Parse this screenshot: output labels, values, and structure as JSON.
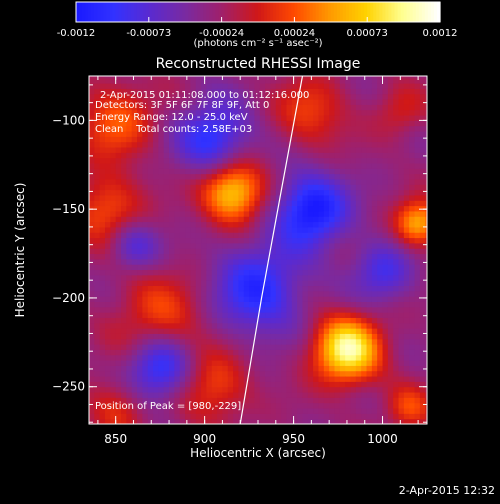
{
  "chart_data": {
    "type": "heatmap",
    "title": "Reconstructed RHESSI Image",
    "xlabel": "Heliocentric X (arcsec)",
    "ylabel": "Heliocentric Y (arcsec)",
    "xlim": [
      835,
      1025
    ],
    "ylim": [
      -271,
      -75
    ],
    "x_ticks": [
      850,
      900,
      950,
      1000
    ],
    "y_ticks": [
      -100,
      -150,
      -200,
      -250
    ],
    "colorbar": {
      "range": [
        -0.0012,
        0.0012
      ],
      "ticks": [
        "-0.0012",
        "-0.00073",
        "-0.00024",
        "0.00024",
        "0.00073",
        "0.0012"
      ],
      "unit_label": "(photons cm⁻² s⁻¹ asec⁻²)",
      "colors": [
        "#1a1aff",
        "#3232ff",
        "#5a2ad0",
        "#7a2aa0",
        "#a0206a",
        "#d01818",
        "#ff4a00",
        "#ff9a00",
        "#ffd200",
        "#ffff90",
        "#ffffff"
      ]
    },
    "annotations": [
      "2-Apr-2015 01:11:08.000 to 01:12:16.000",
      "Detectors: 3F 5F 6F 7F 8F 9F, Att 0",
      "Energy Range: 12.0 - 25.0 keV",
      "Clean    Total counts: 2.58E+03",
      "Position of Peak = [980,-229]"
    ],
    "sources": [
      {
        "x": 980,
        "y": -229,
        "amp": 1.25,
        "r": 13
      },
      {
        "x": 916,
        "y": -140,
        "amp": 1.05,
        "r": 12
      },
      {
        "x": 1020,
        "y": -158,
        "amp": 0.85,
        "r": 9
      },
      {
        "x": 850,
        "y": -100,
        "amp": 0.55,
        "r": 15
      },
      {
        "x": 845,
        "y": -150,
        "amp": 0.55,
        "r": 14
      },
      {
        "x": 875,
        "y": -210,
        "amp": 0.45,
        "r": 18
      },
      {
        "x": 905,
        "y": -250,
        "amp": 0.5,
        "r": 14
      },
      {
        "x": 850,
        "y": -262,
        "amp": 0.4,
        "r": 12
      },
      {
        "x": 960,
        "y": -95,
        "amp": 0.45,
        "r": 14
      },
      {
        "x": 1010,
        "y": -95,
        "amp": 0.3,
        "r": 10
      },
      {
        "x": 1015,
        "y": -262,
        "amp": 0.45,
        "r": 9
      }
    ],
    "negative_regions": [
      {
        "x": 930,
        "y": -195,
        "amp": -0.7,
        "r": 18
      },
      {
        "x": 960,
        "y": -150,
        "amp": -0.9,
        "r": 14
      },
      {
        "x": 905,
        "y": -110,
        "amp": -0.7,
        "r": 14
      },
      {
        "x": 875,
        "y": -240,
        "amp": -0.75,
        "r": 13
      },
      {
        "x": 1000,
        "y": -185,
        "amp": -0.5,
        "r": 12
      },
      {
        "x": 860,
        "y": -170,
        "amp": -0.5,
        "r": 10
      }
    ],
    "limb_curve": [
      {
        "x": 955,
        "y": -75
      },
      {
        "x": 943,
        "y": -140
      },
      {
        "x": 932,
        "y": -200
      },
      {
        "x": 920,
        "y": -271
      }
    ]
  },
  "timestamp": "2-Apr-2015 12:32"
}
